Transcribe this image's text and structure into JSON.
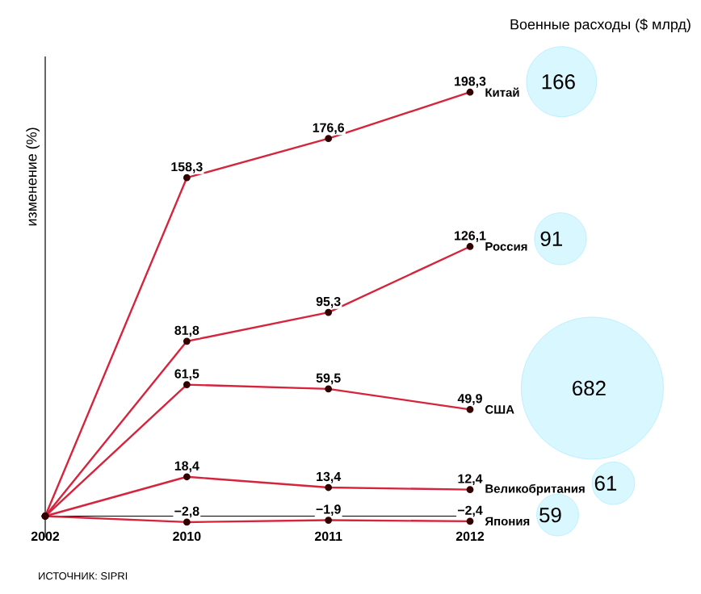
{
  "chart_data": {
    "type": "line",
    "ylabel": "изменение (%)",
    "categories": [
      "2002",
      "2010",
      "2011",
      "2012"
    ],
    "series": [
      {
        "name": "Китай",
        "color": "#d6243c",
        "values": [
          0,
          158.3,
          176.6,
          198.3
        ],
        "value_labels": [
          null,
          "158,3",
          "176,6",
          "198,3"
        ]
      },
      {
        "name": "Россия",
        "color": "#d6243c",
        "values": [
          0,
          81.8,
          95.3,
          126.1
        ],
        "value_labels": [
          null,
          "81,8",
          "95,3",
          "126,1"
        ]
      },
      {
        "name": "США",
        "color": "#d6243c",
        "values": [
          0,
          61.5,
          59.5,
          49.9
        ],
        "value_labels": [
          null,
          "61,5",
          "59,5",
          "49,9"
        ]
      },
      {
        "name": "Великобритания",
        "color": "#d6243c",
        "values": [
          0,
          18.4,
          13.4,
          12.4
        ],
        "value_labels": [
          null,
          "18,4",
          "13,4",
          "12,4"
        ]
      },
      {
        "name": "Япония",
        "color": "#d6243c",
        "values": [
          0,
          -2.8,
          -1.9,
          -2.4
        ],
        "value_labels": [
          null,
          "−2,8",
          "−1,9",
          "−2,4"
        ]
      }
    ],
    "ylim": [
      -10,
      215
    ],
    "tick_labels": "x",
    "marker": "circle",
    "line_style": "solid",
    "annotations": [
      "Военные расходы ($ млрд)",
      "166",
      "91",
      "682",
      "61",
      "59",
      "ИСТОЧНИК: SIPRI"
    ]
  }
}
